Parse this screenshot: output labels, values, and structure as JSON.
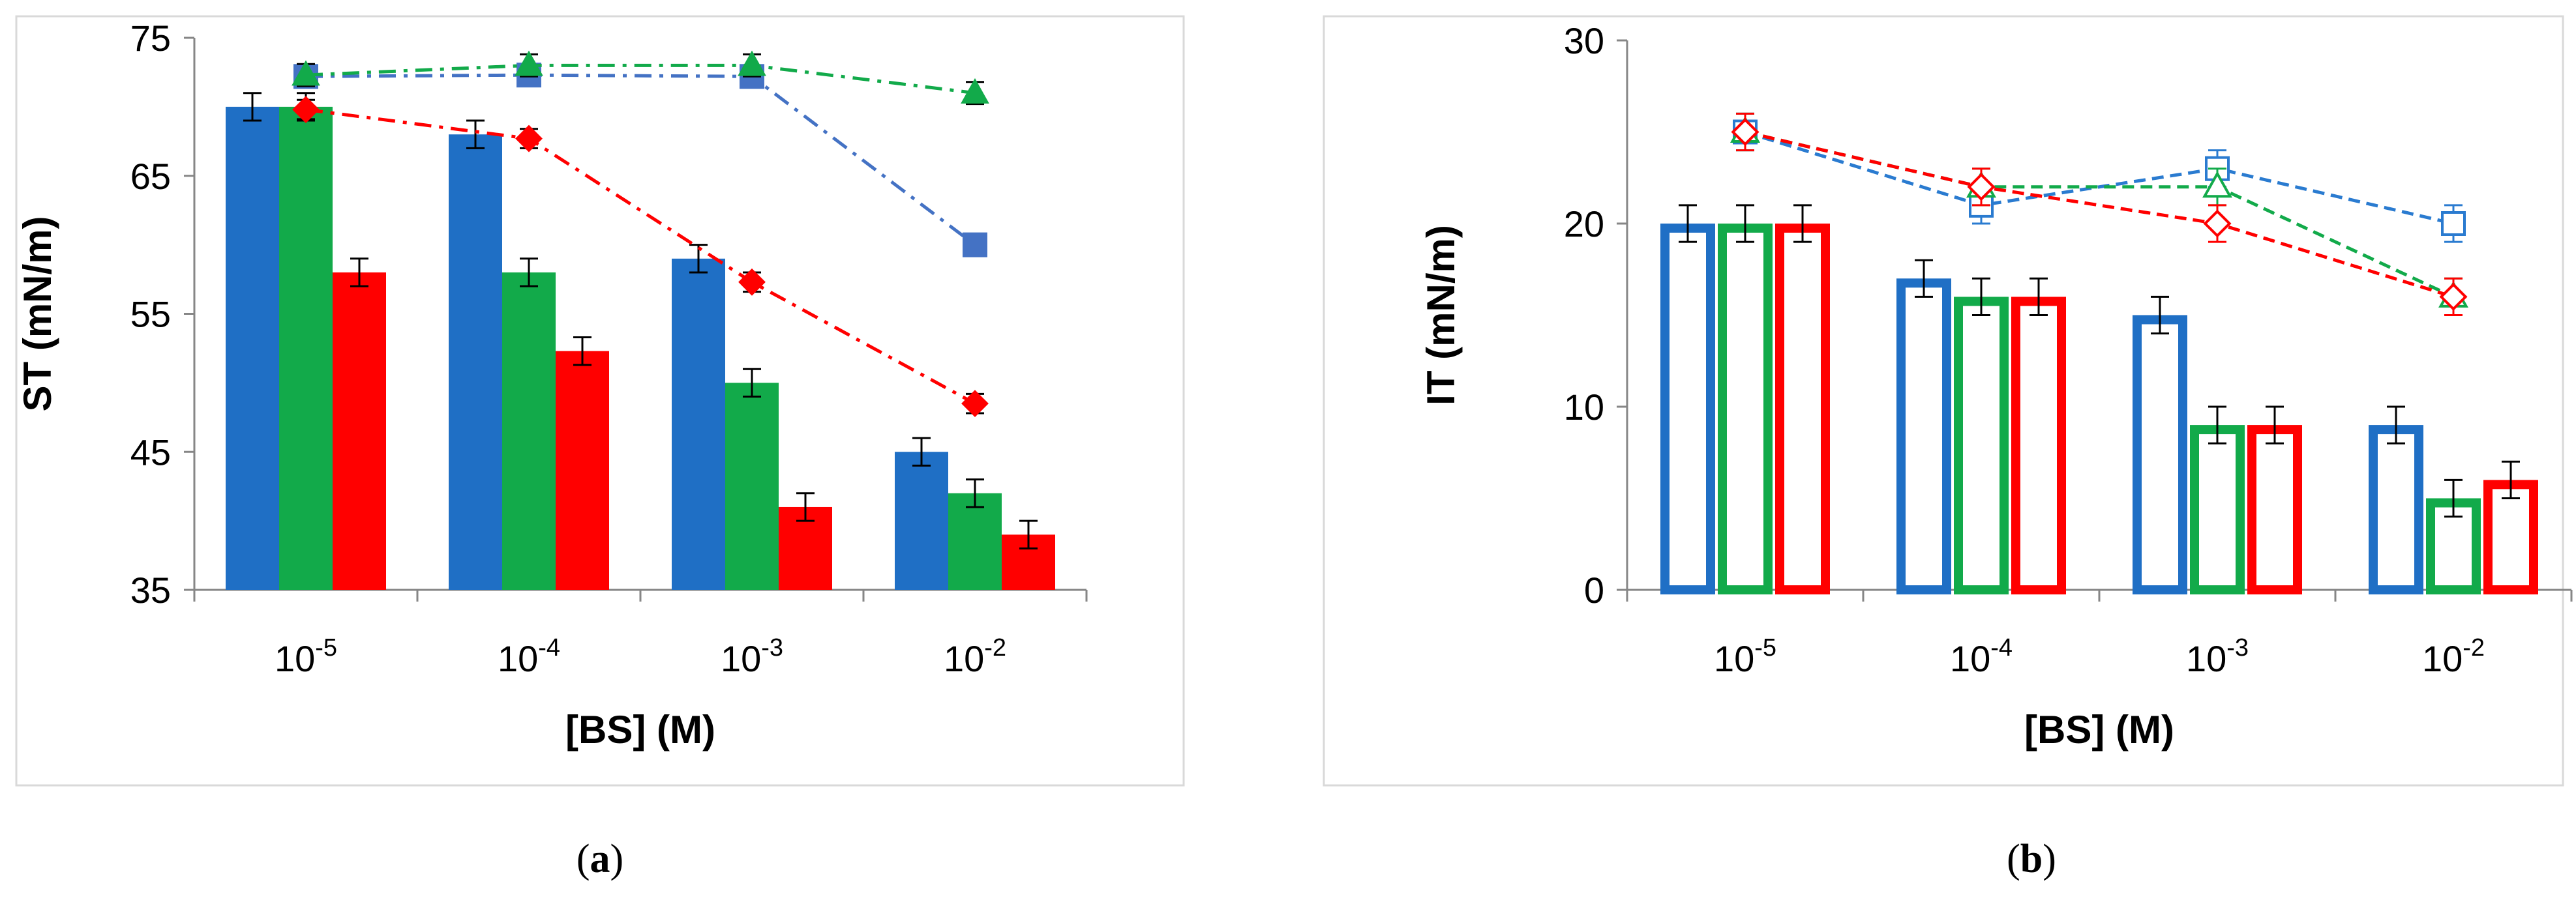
{
  "chart_data": [
    {
      "type": "bar",
      "panel": "a",
      "caption": {
        "open": "(",
        "letter": "a",
        "close": ")"
      },
      "xlabel": "[BS] (M)",
      "ylabel": "ST (mN/m)",
      "ylim": [
        35,
        75
      ],
      "yticks": [
        35,
        45,
        55,
        65,
        75
      ],
      "categories": [
        {
          "base": "10",
          "exp": "-5"
        },
        {
          "base": "10",
          "exp": "-4"
        },
        {
          "base": "10",
          "exp": "-3"
        },
        {
          "base": "10",
          "exp": "-2"
        }
      ],
      "bar_style": "filled",
      "bar_series": [
        {
          "color": "#1f6fc5",
          "values": [
            70,
            68,
            59,
            45
          ],
          "errors": [
            1,
            1,
            1,
            1
          ]
        },
        {
          "color": "#12aa4a",
          "values": [
            70,
            58,
            50,
            42
          ],
          "errors": [
            1,
            1,
            1,
            1
          ]
        },
        {
          "color": "#ff0000",
          "values": [
            58,
            52.3,
            41,
            39
          ],
          "errors": [
            1,
            1,
            1,
            1
          ]
        }
      ],
      "line_series": [
        {
          "color": "#4472c4",
          "dash": "dashdot",
          "marker": "square",
          "values": [
            72.2,
            72.3,
            72.2,
            60
          ],
          "errors": [
            0.6,
            0.6,
            0.6,
            0.6
          ]
        },
        {
          "color": "#12aa4a",
          "dash": "dashdot",
          "marker": "triangle",
          "values": [
            72.3,
            73,
            73,
            71
          ],
          "errors": [
            0.8,
            0.8,
            0.8,
            0.8
          ]
        },
        {
          "color": "#ff0000",
          "dash": "dashdot",
          "marker": "diamond",
          "values": [
            69.8,
            67.7,
            57.3,
            48.5
          ],
          "errors": [
            0.7,
            0.7,
            0.7,
            0.7
          ]
        }
      ]
    },
    {
      "type": "bar",
      "panel": "b",
      "caption": {
        "open": "(",
        "letter": "b",
        "close": ")"
      },
      "xlabel": "[BS] (M)",
      "ylabel": "IT (mN/m)",
      "ylim": [
        0,
        30
      ],
      "yticks": [
        0,
        10,
        20,
        30
      ],
      "categories": [
        {
          "base": "10",
          "exp": "-5"
        },
        {
          "base": "10",
          "exp": "-4"
        },
        {
          "base": "10",
          "exp": "-3"
        },
        {
          "base": "10",
          "exp": "-2"
        }
      ],
      "bar_style": "outline",
      "bar_series": [
        {
          "color": "#1f6fc5",
          "values": [
            20,
            17,
            15,
            9
          ],
          "errors": [
            1,
            1,
            1,
            1
          ]
        },
        {
          "color": "#12aa4a",
          "values": [
            20,
            16,
            9,
            5
          ],
          "errors": [
            1,
            1,
            1,
            1
          ]
        },
        {
          "color": "#ff0000",
          "values": [
            20,
            16,
            9,
            6
          ],
          "errors": [
            1,
            1,
            1,
            1
          ]
        }
      ],
      "line_series": [
        {
          "color": "#2a7bd0",
          "dash": "dash",
          "marker": "square-open",
          "values": [
            25,
            21,
            23,
            20
          ],
          "errors": [
            1,
            1,
            1,
            1
          ]
        },
        {
          "color": "#12aa4a",
          "dash": "dash",
          "marker": "triangle-open",
          "values": [
            25,
            22,
            22,
            16
          ],
          "errors": [
            1,
            1,
            1,
            1
          ]
        },
        {
          "color": "#ff0000",
          "dash": "dash",
          "marker": "diamond-open",
          "values": [
            25,
            22,
            20,
            16
          ],
          "errors": [
            1,
            1,
            1,
            1
          ]
        }
      ]
    }
  ]
}
